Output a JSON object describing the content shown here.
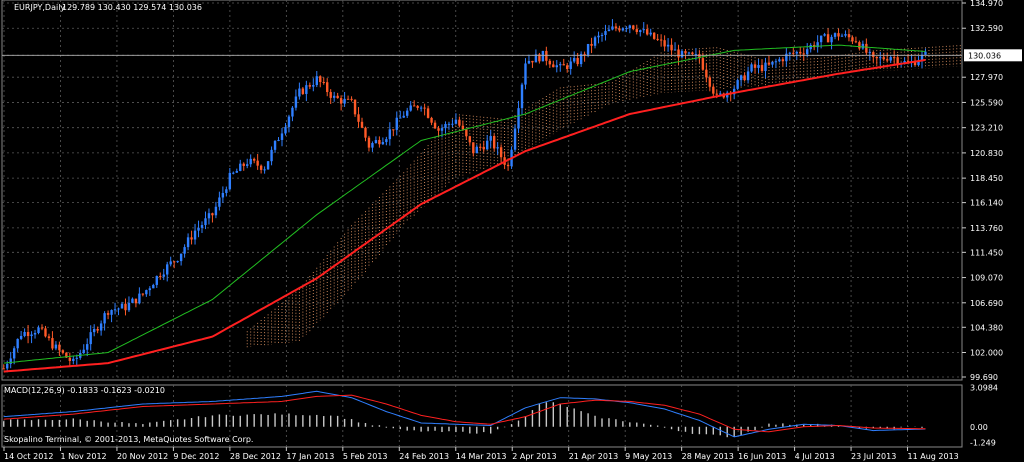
{
  "header": {
    "symbol": "EURJPY,Daily",
    "ohlc": "129.789 130.430 129.574 130.036"
  },
  "macd_header": "MACD(12,26,9) -0.1833 -0.1623 -0.0210",
  "copyright": "Skopalino Terminal, © 2001-2013, MetaQuotes Software Corp.",
  "colors": {
    "background": "#000000",
    "grid": "#5a5a5a",
    "bull": "#2f7fff",
    "bear": "#ff5a28",
    "ma_fast": "#22c022",
    "ma_slow": "#ff2020",
    "cloud": "#d99060",
    "macd_hist": "#c8c8c8",
    "macd_line": "#2f7fff",
    "signal_line": "#ff2020",
    "arrow_up": "#22ff22",
    "arrow_down": "#ff2020"
  },
  "chart_data": [
    {
      "type": "candlestick",
      "y_ticks": [
        "134.970",
        "132.590",
        "130.036",
        "127.970",
        "125.590",
        "123.210",
        "120.830",
        "118.450",
        "116.140",
        "113.760",
        "111.450",
        "109.070",
        "106.690",
        "104.380",
        "102.000",
        "99.690"
      ],
      "current_price": "130.036",
      "ylim": [
        99.69,
        134.97
      ],
      "x_ticks": [
        "14 Oct 2012",
        "1 Nov 2012",
        "20 Nov 2012",
        "9 Dec 2012",
        "28 Dec 2012",
        "17 Jan 2013",
        "5 Feb 2013",
        "24 Feb 2013",
        "14 Mar 2013",
        "2 Apr 2013",
        "21 Apr 2013",
        "9 May 2013",
        "28 May 2013",
        "16 Jun 2013",
        "4 Jul 2013",
        "23 Jul 2013",
        "11 Aug 2013"
      ],
      "close_anchors": [
        [
          0,
          100.5
        ],
        [
          5,
          103.8
        ],
        [
          10,
          104.2
        ],
        [
          15,
          102.4
        ],
        [
          20,
          101.0
        ],
        [
          25,
          103.5
        ],
        [
          30,
          106.0
        ],
        [
          35,
          106.3
        ],
        [
          40,
          107.5
        ],
        [
          45,
          109.5
        ],
        [
          50,
          111.0
        ],
        [
          55,
          113.5
        ],
        [
          60,
          115.0
        ],
        [
          65,
          118.5
        ],
        [
          70,
          120.0
        ],
        [
          75,
          119.5
        ],
        [
          80,
          123.0
        ],
        [
          85,
          126.5
        ],
        [
          90,
          127.8
        ],
        [
          95,
          126.0
        ],
        [
          100,
          125.5
        ],
        [
          105,
          121.5
        ],
        [
          110,
          122.5
        ],
        [
          115,
          124.5
        ],
        [
          120,
          125.5
        ],
        [
          125,
          123.0
        ],
        [
          130,
          124.0
        ],
        [
          135,
          121.0
        ],
        [
          140,
          122.0
        ],
        [
          145,
          119.5
        ],
        [
          150,
          129.5
        ],
        [
          155,
          130.0
        ],
        [
          160,
          128.8
        ],
        [
          165,
          129.5
        ],
        [
          170,
          131.5
        ],
        [
          175,
          132.5
        ],
        [
          180,
          133.0
        ],
        [
          185,
          132.0
        ],
        [
          190,
          131.0
        ],
        [
          195,
          130.0
        ],
        [
          200,
          129.8
        ],
        [
          205,
          126.0
        ],
        [
          210,
          127.0
        ],
        [
          215,
          128.8
        ],
        [
          220,
          129.0
        ],
        [
          225,
          130.0
        ],
        [
          230,
          130.5
        ],
        [
          235,
          131.5
        ],
        [
          240,
          132.0
        ],
        [
          245,
          131.5
        ],
        [
          250,
          129.5
        ],
        [
          255,
          130.0
        ],
        [
          260,
          129.2
        ],
        [
          265,
          130.036
        ]
      ],
      "ma_slow_anchors": [
        [
          0,
          100.2
        ],
        [
          30,
          101.0
        ],
        [
          60,
          103.5
        ],
        [
          90,
          109.0
        ],
        [
          120,
          116.0
        ],
        [
          150,
          121.0
        ],
        [
          180,
          124.5
        ],
        [
          210,
          126.5
        ],
        [
          240,
          128.3
        ],
        [
          265,
          129.6
        ]
      ],
      "ma_fast_anchors": [
        [
          0,
          101.0
        ],
        [
          30,
          102.0
        ],
        [
          60,
          107.0
        ],
        [
          90,
          115.0
        ],
        [
          120,
          122.0
        ],
        [
          150,
          124.5
        ],
        [
          180,
          128.5
        ],
        [
          210,
          130.5
        ],
        [
          240,
          131.0
        ],
        [
          265,
          130.4
        ]
      ],
      "cloud_top_anchors": [
        [
          70,
          104.0
        ],
        [
          85,
          108.0
        ],
        [
          100,
          114.0
        ],
        [
          115,
          119.0
        ],
        [
          130,
          124.5
        ],
        [
          145,
          124.0
        ],
        [
          160,
          127.0
        ],
        [
          175,
          127.5
        ],
        [
          190,
          130.5
        ],
        [
          205,
          130.8
        ],
        [
          220,
          129.5
        ],
        [
          235,
          129.8
        ],
        [
          250,
          130.5
        ],
        [
          275,
          131.0
        ]
      ],
      "cloud_bottom_anchors": [
        [
          70,
          102.5
        ],
        [
          85,
          103.0
        ],
        [
          100,
          108.0
        ],
        [
          115,
          114.0
        ],
        [
          130,
          118.5
        ],
        [
          145,
          120.0
        ],
        [
          160,
          123.0
        ],
        [
          175,
          125.5
        ],
        [
          190,
          126.5
        ],
        [
          205,
          126.8
        ],
        [
          220,
          127.2
        ],
        [
          235,
          128.0
        ],
        [
          250,
          128.5
        ],
        [
          275,
          129.0
        ]
      ]
    },
    {
      "type": "macd",
      "y_ticks": [
        "3.0984",
        "0.00",
        "-1.249"
      ],
      "ylim": [
        -1.6,
        3.3
      ],
      "hist_anchors": [
        [
          0,
          0.5
        ],
        [
          20,
          0.6
        ],
        [
          40,
          0.2
        ],
        [
          60,
          0.9
        ],
        [
          80,
          1.0
        ],
        [
          95,
          0.9
        ],
        [
          105,
          0.2
        ],
        [
          115,
          -0.3
        ],
        [
          125,
          -0.4
        ],
        [
          140,
          -0.5
        ],
        [
          150,
          0.8
        ],
        [
          155,
          2.0
        ],
        [
          160,
          1.8
        ],
        [
          170,
          0.8
        ],
        [
          185,
          0.2
        ],
        [
          200,
          -0.6
        ],
        [
          210,
          -0.8
        ],
        [
          220,
          0.2
        ],
        [
          235,
          0.2
        ],
        [
          250,
          -0.2
        ],
        [
          265,
          -0.02
        ]
      ],
      "macd_anchors": [
        [
          0,
          0.8
        ],
        [
          20,
          1.2
        ],
        [
          40,
          1.8
        ],
        [
          60,
          2.0
        ],
        [
          80,
          2.4
        ],
        [
          90,
          2.8
        ],
        [
          100,
          2.3
        ],
        [
          110,
          1.2
        ],
        [
          120,
          0.3
        ],
        [
          130,
          0.2
        ],
        [
          140,
          0.1
        ],
        [
          150,
          1.5
        ],
        [
          160,
          2.3
        ],
        [
          170,
          2.2
        ],
        [
          180,
          1.9
        ],
        [
          190,
          1.4
        ],
        [
          200,
          0.5
        ],
        [
          210,
          -0.8
        ],
        [
          220,
          -0.2
        ],
        [
          230,
          0.2
        ],
        [
          240,
          0.1
        ],
        [
          250,
          -0.3
        ],
        [
          265,
          -0.18
        ]
      ],
      "signal_anchors": [
        [
          0,
          0.6
        ],
        [
          20,
          1.0
        ],
        [
          40,
          1.6
        ],
        [
          60,
          1.8
        ],
        [
          80,
          2.0
        ],
        [
          90,
          2.4
        ],
        [
          100,
          2.5
        ],
        [
          110,
          1.8
        ],
        [
          120,
          0.9
        ],
        [
          130,
          0.4
        ],
        [
          140,
          0.2
        ],
        [
          150,
          0.8
        ],
        [
          160,
          1.8
        ],
        [
          170,
          2.1
        ],
        [
          180,
          2.0
        ],
        [
          190,
          1.7
        ],
        [
          200,
          1.0
        ],
        [
          210,
          -0.2
        ],
        [
          220,
          -0.4
        ],
        [
          230,
          0.0
        ],
        [
          240,
          0.1
        ],
        [
          250,
          -0.1
        ],
        [
          265,
          -0.16
        ]
      ]
    }
  ]
}
